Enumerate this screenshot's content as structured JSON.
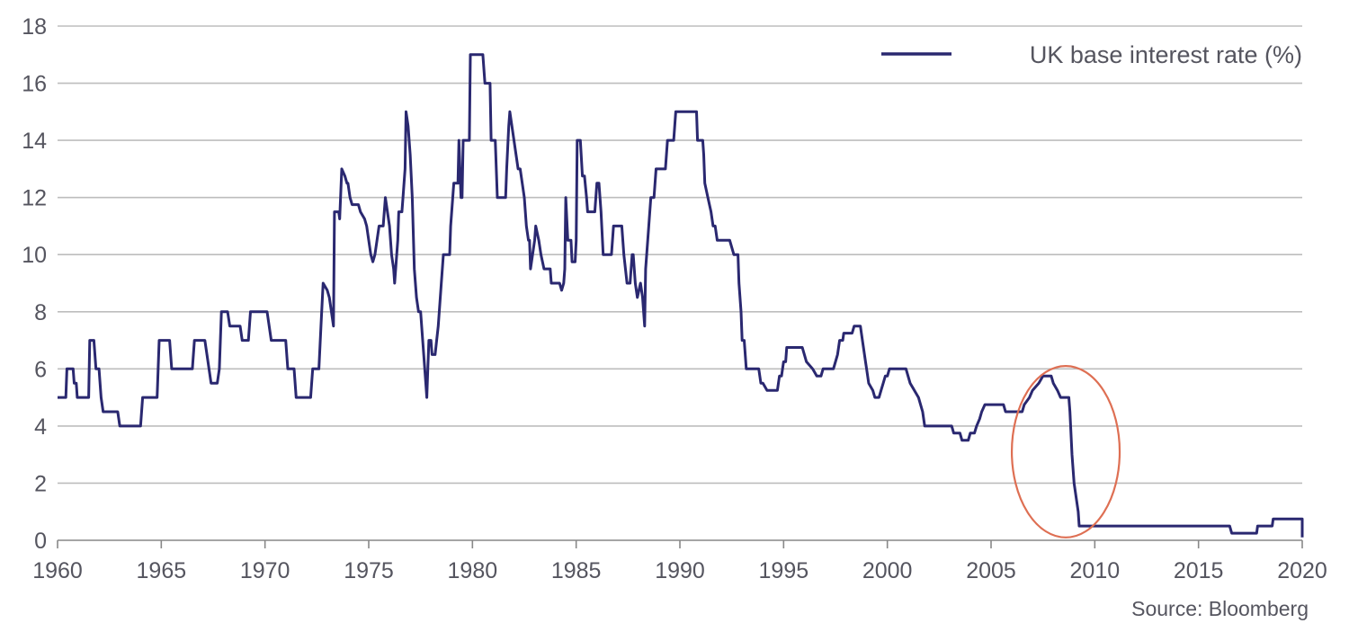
{
  "chart_data": {
    "type": "line",
    "title": "",
    "xlabel": "",
    "ylabel": "",
    "xlim": [
      1960,
      2020
    ],
    "ylim": [
      0,
      18
    ],
    "x_ticks": [
      1960,
      1965,
      1970,
      1975,
      1980,
      1985,
      1990,
      1995,
      2000,
      2005,
      2010,
      2015,
      2020
    ],
    "y_ticks": [
      0,
      2,
      4,
      6,
      8,
      10,
      12,
      14,
      16,
      18
    ],
    "grid": "horizontal",
    "legend_position": "top-right",
    "source": "Source: Bloomberg",
    "series": [
      {
        "name": "UK base interest rate (%)",
        "color": "#2a2870",
        "points": [
          [
            1960.0,
            5.0
          ],
          [
            1960.4,
            5.0
          ],
          [
            1960.45,
            6.0
          ],
          [
            1960.75,
            6.0
          ],
          [
            1960.8,
            5.5
          ],
          [
            1960.9,
            5.5
          ],
          [
            1960.95,
            5.0
          ],
          [
            1961.5,
            5.0
          ],
          [
            1961.55,
            7.0
          ],
          [
            1961.75,
            7.0
          ],
          [
            1961.85,
            6.0
          ],
          [
            1962.0,
            6.0
          ],
          [
            1962.1,
            5.0
          ],
          [
            1962.2,
            4.5
          ],
          [
            1962.9,
            4.5
          ],
          [
            1963.0,
            4.0
          ],
          [
            1963.9,
            4.0
          ],
          [
            1964.0,
            4.0
          ],
          [
            1964.1,
            5.0
          ],
          [
            1964.8,
            5.0
          ],
          [
            1964.9,
            7.0
          ],
          [
            1965.4,
            7.0
          ],
          [
            1965.5,
            6.0
          ],
          [
            1966.4,
            6.0
          ],
          [
            1966.5,
            6.0
          ],
          [
            1966.6,
            7.0
          ],
          [
            1967.1,
            7.0
          ],
          [
            1967.2,
            6.5
          ],
          [
            1967.3,
            6.0
          ],
          [
            1967.4,
            5.5
          ],
          [
            1967.7,
            5.5
          ],
          [
            1967.8,
            6.0
          ],
          [
            1967.9,
            8.0
          ],
          [
            1968.2,
            8.0
          ],
          [
            1968.3,
            7.5
          ],
          [
            1968.8,
            7.5
          ],
          [
            1968.9,
            7.0
          ],
          [
            1969.2,
            7.0
          ],
          [
            1969.3,
            8.0
          ],
          [
            1970.1,
            8.0
          ],
          [
            1970.3,
            7.0
          ],
          [
            1971.0,
            7.0
          ],
          [
            1971.1,
            6.0
          ],
          [
            1971.4,
            6.0
          ],
          [
            1971.5,
            5.0
          ],
          [
            1972.2,
            5.0
          ],
          [
            1972.3,
            6.0
          ],
          [
            1972.6,
            6.0
          ],
          [
            1972.7,
            7.5
          ],
          [
            1972.8,
            9.0
          ],
          [
            1973.0,
            8.75
          ],
          [
            1973.1,
            8.5
          ],
          [
            1973.2,
            8.0
          ],
          [
            1973.3,
            7.5
          ],
          [
            1973.35,
            11.5
          ],
          [
            1973.55,
            11.5
          ],
          [
            1973.6,
            11.25
          ],
          [
            1973.7,
            13.0
          ],
          [
            1973.85,
            12.75
          ],
          [
            1973.95,
            12.5
          ],
          [
            1974.0,
            12.5
          ],
          [
            1974.1,
            12.0
          ],
          [
            1974.2,
            11.75
          ],
          [
            1974.5,
            11.75
          ],
          [
            1974.6,
            11.5
          ],
          [
            1974.8,
            11.25
          ],
          [
            1974.9,
            11.0
          ],
          [
            1975.0,
            10.5
          ],
          [
            1975.1,
            10.0
          ],
          [
            1975.2,
            9.75
          ],
          [
            1975.3,
            10.0
          ],
          [
            1975.4,
            10.5
          ],
          [
            1975.5,
            11.0
          ],
          [
            1975.7,
            11.0
          ],
          [
            1975.8,
            12.0
          ],
          [
            1975.9,
            11.5
          ],
          [
            1976.0,
            11.0
          ],
          [
            1976.1,
            10.0
          ],
          [
            1976.2,
            9.5
          ],
          [
            1976.25,
            9.0
          ],
          [
            1976.4,
            10.5
          ],
          [
            1976.45,
            11.5
          ],
          [
            1976.6,
            11.5
          ],
          [
            1976.65,
            12.0
          ],
          [
            1976.75,
            13.0
          ],
          [
            1976.8,
            15.0
          ],
          [
            1976.9,
            14.5
          ],
          [
            1977.0,
            13.5
          ],
          [
            1977.1,
            12.0
          ],
          [
            1977.2,
            9.5
          ],
          [
            1977.3,
            8.5
          ],
          [
            1977.4,
            8.0
          ],
          [
            1977.5,
            8.0
          ],
          [
            1977.6,
            7.0
          ],
          [
            1977.7,
            6.0
          ],
          [
            1977.8,
            5.0
          ],
          [
            1977.85,
            6.0
          ],
          [
            1977.9,
            7.0
          ],
          [
            1978.0,
            7.0
          ],
          [
            1978.05,
            6.5
          ],
          [
            1978.2,
            6.5
          ],
          [
            1978.35,
            7.5
          ],
          [
            1978.5,
            9.0
          ],
          [
            1978.6,
            10.0
          ],
          [
            1978.9,
            10.0
          ],
          [
            1978.95,
            11.0
          ],
          [
            1979.1,
            12.5
          ],
          [
            1979.3,
            12.5
          ],
          [
            1979.35,
            14.0
          ],
          [
            1979.45,
            12.0
          ],
          [
            1979.5,
            12.0
          ],
          [
            1979.55,
            14.0
          ],
          [
            1979.85,
            14.0
          ],
          [
            1979.9,
            17.0
          ],
          [
            1980.5,
            17.0
          ],
          [
            1980.6,
            16.0
          ],
          [
            1980.85,
            16.0
          ],
          [
            1980.9,
            14.0
          ],
          [
            1981.1,
            14.0
          ],
          [
            1981.2,
            12.0
          ],
          [
            1981.6,
            12.0
          ],
          [
            1981.65,
            13.0
          ],
          [
            1981.75,
            14.5
          ],
          [
            1981.8,
            15.0
          ],
          [
            1981.9,
            14.5
          ],
          [
            1982.0,
            14.0
          ],
          [
            1982.1,
            13.5
          ],
          [
            1982.2,
            13.0
          ],
          [
            1982.3,
            13.0
          ],
          [
            1982.4,
            12.5
          ],
          [
            1982.5,
            12.0
          ],
          [
            1982.6,
            11.0
          ],
          [
            1982.7,
            10.5
          ],
          [
            1982.75,
            10.5
          ],
          [
            1982.8,
            9.5
          ],
          [
            1982.9,
            10.0
          ],
          [
            1983.0,
            10.5
          ],
          [
            1983.05,
            11.0
          ],
          [
            1983.2,
            10.5
          ],
          [
            1983.3,
            10.0
          ],
          [
            1983.45,
            9.5
          ],
          [
            1983.75,
            9.5
          ],
          [
            1983.8,
            9.0
          ],
          [
            1984.2,
            9.0
          ],
          [
            1984.3,
            8.75
          ],
          [
            1984.4,
            9.0
          ],
          [
            1984.45,
            9.5
          ],
          [
            1984.5,
            12.0
          ],
          [
            1984.6,
            10.5
          ],
          [
            1984.75,
            10.5
          ],
          [
            1984.8,
            9.75
          ],
          [
            1984.95,
            9.75
          ],
          [
            1985.0,
            10.5
          ],
          [
            1985.05,
            14.0
          ],
          [
            1985.2,
            14.0
          ],
          [
            1985.3,
            12.75
          ],
          [
            1985.4,
            12.75
          ],
          [
            1985.5,
            12.0
          ],
          [
            1985.55,
            11.5
          ],
          [
            1985.9,
            11.5
          ],
          [
            1986.0,
            12.5
          ],
          [
            1986.1,
            12.5
          ],
          [
            1986.2,
            11.5
          ],
          [
            1986.3,
            10.0
          ],
          [
            1986.7,
            10.0
          ],
          [
            1986.8,
            11.0
          ],
          [
            1987.2,
            11.0
          ],
          [
            1987.3,
            10.0
          ],
          [
            1987.45,
            9.0
          ],
          [
            1987.6,
            9.0
          ],
          [
            1987.7,
            10.0
          ],
          [
            1987.75,
            10.0
          ],
          [
            1987.85,
            9.0
          ],
          [
            1987.95,
            8.5
          ],
          [
            1988.1,
            9.0
          ],
          [
            1988.2,
            8.5
          ],
          [
            1988.3,
            7.5
          ],
          [
            1988.35,
            9.5
          ],
          [
            1988.5,
            11.0
          ],
          [
            1988.6,
            12.0
          ],
          [
            1988.75,
            12.0
          ],
          [
            1988.85,
            13.0
          ],
          [
            1989.3,
            13.0
          ],
          [
            1989.4,
            14.0
          ],
          [
            1989.7,
            14.0
          ],
          [
            1989.8,
            15.0
          ],
          [
            1990.8,
            15.0
          ],
          [
            1990.85,
            14.0
          ],
          [
            1991.1,
            14.0
          ],
          [
            1991.15,
            13.5
          ],
          [
            1991.2,
            12.5
          ],
          [
            1991.35,
            12.0
          ],
          [
            1991.5,
            11.5
          ],
          [
            1991.6,
            11.0
          ],
          [
            1991.7,
            11.0
          ],
          [
            1991.8,
            10.5
          ],
          [
            1992.4,
            10.5
          ],
          [
            1992.6,
            10.0
          ],
          [
            1992.8,
            10.0
          ],
          [
            1992.85,
            9.0
          ],
          [
            1992.95,
            8.0
          ],
          [
            1993.0,
            7.0
          ],
          [
            1993.1,
            7.0
          ],
          [
            1993.2,
            6.0
          ],
          [
            1993.8,
            6.0
          ],
          [
            1993.9,
            5.5
          ],
          [
            1994.0,
            5.5
          ],
          [
            1994.2,
            5.25
          ],
          [
            1994.7,
            5.25
          ],
          [
            1994.8,
            5.75
          ],
          [
            1994.9,
            5.75
          ],
          [
            1995.0,
            6.25
          ],
          [
            1995.1,
            6.25
          ],
          [
            1995.15,
            6.75
          ],
          [
            1995.9,
            6.75
          ],
          [
            1996.0,
            6.5
          ],
          [
            1996.1,
            6.25
          ],
          [
            1996.4,
            6.0
          ],
          [
            1996.6,
            5.75
          ],
          [
            1996.8,
            5.75
          ],
          [
            1996.9,
            6.0
          ],
          [
            1997.4,
            6.0
          ],
          [
            1997.5,
            6.25
          ],
          [
            1997.6,
            6.5
          ],
          [
            1997.7,
            7.0
          ],
          [
            1997.85,
            7.0
          ],
          [
            1997.9,
            7.25
          ],
          [
            1998.3,
            7.25
          ],
          [
            1998.4,
            7.5
          ],
          [
            1998.7,
            7.5
          ],
          [
            1998.75,
            7.25
          ],
          [
            1998.85,
            6.75
          ],
          [
            1998.95,
            6.25
          ],
          [
            1999.0,
            6.0
          ],
          [
            1999.1,
            5.5
          ],
          [
            1999.3,
            5.25
          ],
          [
            1999.4,
            5.0
          ],
          [
            1999.6,
            5.0
          ],
          [
            1999.7,
            5.25
          ],
          [
            1999.8,
            5.5
          ],
          [
            1999.9,
            5.75
          ],
          [
            2000.0,
            5.75
          ],
          [
            2000.1,
            6.0
          ],
          [
            2000.9,
            6.0
          ],
          [
            2001.0,
            5.75
          ],
          [
            2001.1,
            5.5
          ],
          [
            2001.3,
            5.25
          ],
          [
            2001.5,
            5.0
          ],
          [
            2001.6,
            4.75
          ],
          [
            2001.7,
            4.5
          ],
          [
            2001.8,
            4.0
          ],
          [
            2003.1,
            4.0
          ],
          [
            2003.2,
            3.75
          ],
          [
            2003.5,
            3.75
          ],
          [
            2003.6,
            3.5
          ],
          [
            2003.9,
            3.5
          ],
          [
            2004.0,
            3.75
          ],
          [
            2004.2,
            3.75
          ],
          [
            2004.3,
            4.0
          ],
          [
            2004.45,
            4.25
          ],
          [
            2004.55,
            4.5
          ],
          [
            2004.7,
            4.75
          ],
          [
            2005.6,
            4.75
          ],
          [
            2005.7,
            4.5
          ],
          [
            2006.5,
            4.5
          ],
          [
            2006.6,
            4.75
          ],
          [
            2006.85,
            5.0
          ],
          [
            2007.0,
            5.25
          ],
          [
            2007.3,
            5.5
          ],
          [
            2007.5,
            5.75
          ],
          [
            2007.9,
            5.75
          ],
          [
            2008.0,
            5.5
          ],
          [
            2008.2,
            5.25
          ],
          [
            2008.35,
            5.0
          ],
          [
            2008.75,
            5.0
          ],
          [
            2008.8,
            4.5
          ],
          [
            2008.9,
            3.0
          ],
          [
            2009.0,
            2.0
          ],
          [
            2009.1,
            1.5
          ],
          [
            2009.2,
            1.0
          ],
          [
            2009.25,
            0.5
          ],
          [
            2016.5,
            0.5
          ],
          [
            2016.6,
            0.25
          ],
          [
            2017.8,
            0.25
          ],
          [
            2017.85,
            0.5
          ],
          [
            2018.55,
            0.5
          ],
          [
            2018.6,
            0.75
          ],
          [
            2020.2,
            0.75
          ],
          [
            2020.25,
            0.1
          ],
          [
            2020.8,
            0.1
          ]
        ]
      }
    ],
    "annotations": [
      {
        "type": "ellipse",
        "color": "#de6f53",
        "center": [
          2008.6,
          3.1
        ],
        "radius_years": 2.6,
        "radius_value": 3.0
      }
    ]
  }
}
